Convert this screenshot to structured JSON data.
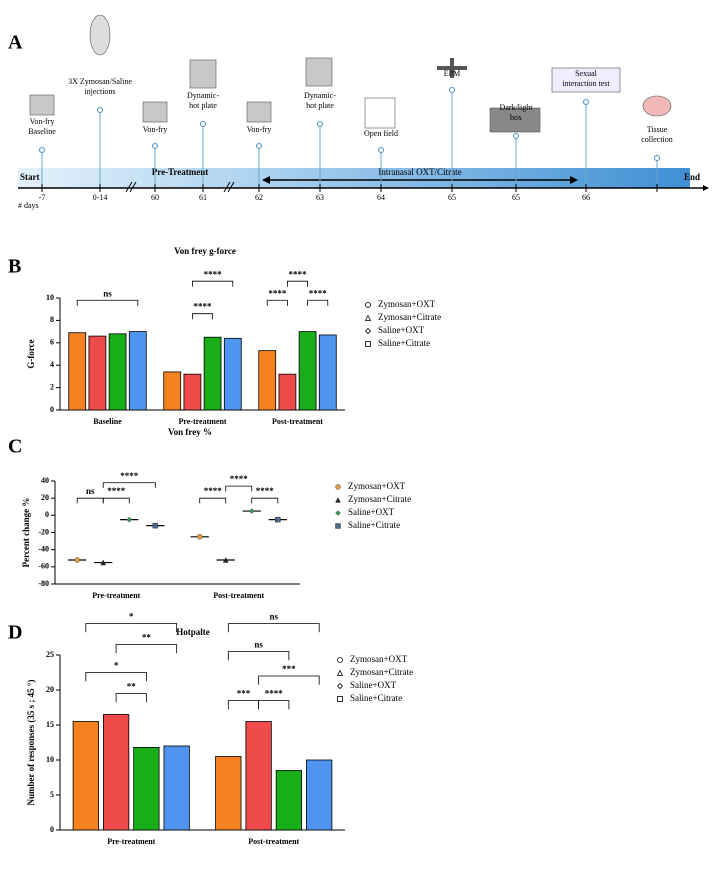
{
  "panel_labels": [
    "A",
    "B",
    "C",
    "D"
  ],
  "timeline": {
    "start": "Start",
    "end": "End",
    "days_label": "# days",
    "phases": [
      "Pre-Treatment",
      "Intranasal  OXT/Citrate"
    ],
    "events": [
      {
        "lines": [
          "Von-fry",
          "Baseline"
        ],
        "day": "-7"
      },
      {
        "lines": [
          "3X Zymosan/Saline",
          "injections"
        ],
        "day": "0-14"
      },
      {
        "lines": [
          "Von-fry"
        ],
        "day": "60"
      },
      {
        "lines": [
          "Dynamic-",
          "hot plate"
        ],
        "day": "61"
      },
      {
        "lines": [
          "Von-fry"
        ],
        "day": "62"
      },
      {
        "lines": [
          "Dynamic-",
          "hot plate"
        ],
        "day": "63"
      },
      {
        "lines": [
          "Open field"
        ],
        "day": "64"
      },
      {
        "lines": [
          "EPM"
        ],
        "day": "65"
      },
      {
        "lines": [
          "Dark/light",
          "box"
        ],
        "day": "65"
      },
      {
        "lines": [
          "Sexual",
          "interaction test"
        ],
        "day": "66"
      },
      {
        "lines": [
          "Tissue",
          "collection"
        ],
        "day": null
      }
    ]
  },
  "chart_data": [
    {
      "type": "bar",
      "title": "Von frey g-force",
      "ylabel": "G-force",
      "categories": [
        "Baseline",
        "Pre-treatment",
        "Post-treatment"
      ],
      "series": [
        {
          "name": "Zymosan+OXT",
          "color": "#f58220",
          "marker": "circle",
          "values": [
            6.9,
            3.4,
            5.3
          ]
        },
        {
          "name": "Zymosan+Citrate",
          "color": "#ef4b4b",
          "marker": "triangle",
          "values": [
            6.6,
            3.2,
            3.2
          ]
        },
        {
          "name": "Saline+OXT",
          "color": "#1aad1a",
          "marker": "diamond",
          "values": [
            6.8,
            6.5,
            7.0
          ]
        },
        {
          "name": "Saline+Citrate",
          "color": "#4f94ef",
          "marker": "square",
          "values": [
            7.0,
            6.4,
            6.7
          ]
        }
      ],
      "ylim": [
        0,
        10
      ],
      "yticks": [
        0,
        2,
        4,
        6,
        8,
        10
      ],
      "legend_marker_style": "outline",
      "annotations": [
        "ns",
        "****",
        "****",
        "****",
        "****",
        "****"
      ]
    },
    {
      "type": "dot",
      "title": "Von frey %",
      "ylabel": "Percent change %",
      "categories": [
        "Pre-treatment",
        "Post-treatment"
      ],
      "series": [
        {
          "name": "Zymosan+OXT",
          "color": "#e0a040",
          "marker": "circle",
          "values": [
            -52,
            -25
          ]
        },
        {
          "name": "Zymosan+Citrate",
          "color": "#222222",
          "marker": "triangle",
          "values": [
            -55,
            -52
          ]
        },
        {
          "name": "Saline+OXT",
          "color": "#3a9a5a",
          "marker": "diamond",
          "values": [
            -5,
            5
          ]
        },
        {
          "name": "Saline+Citrate",
          "color": "#4a6a8a",
          "marker": "square",
          "values": [
            -12,
            -5
          ]
        }
      ],
      "ylim": [
        -80,
        40
      ],
      "yticks": [
        -80,
        -60,
        -40,
        -20,
        0,
        20,
        40
      ],
      "legend_marker_style": "filled",
      "annotations": [
        "ns",
        "****",
        "****",
        "****",
        "****",
        "****"
      ]
    },
    {
      "type": "bar",
      "title": "Hotpalte",
      "ylabel": "Number of responses (35 s ; 45 °)",
      "categories": [
        "Pre-treatment",
        "Post-treatment"
      ],
      "series": [
        {
          "name": "Zymosan+OXT",
          "color": "#f58220",
          "marker": "circle",
          "values": [
            15.5,
            10.5
          ]
        },
        {
          "name": "Zymosan+Citrate",
          "color": "#ef4b4b",
          "marker": "triangle",
          "values": [
            16.5,
            15.5
          ]
        },
        {
          "name": "Saline+OXT",
          "color": "#1aad1a",
          "marker": "diamond",
          "values": [
            11.8,
            8.5
          ]
        },
        {
          "name": "Saline+Citrate",
          "color": "#4f94ef",
          "marker": "square",
          "values": [
            12,
            10
          ]
        }
      ],
      "ylim": [
        0,
        25
      ],
      "yticks": [
        0,
        5,
        10,
        15,
        20,
        25
      ],
      "legend_marker_style": "outline",
      "annotations": [
        "*",
        "**",
        "*",
        "**",
        "ns",
        "ns",
        "***",
        "****",
        "***"
      ]
    }
  ]
}
